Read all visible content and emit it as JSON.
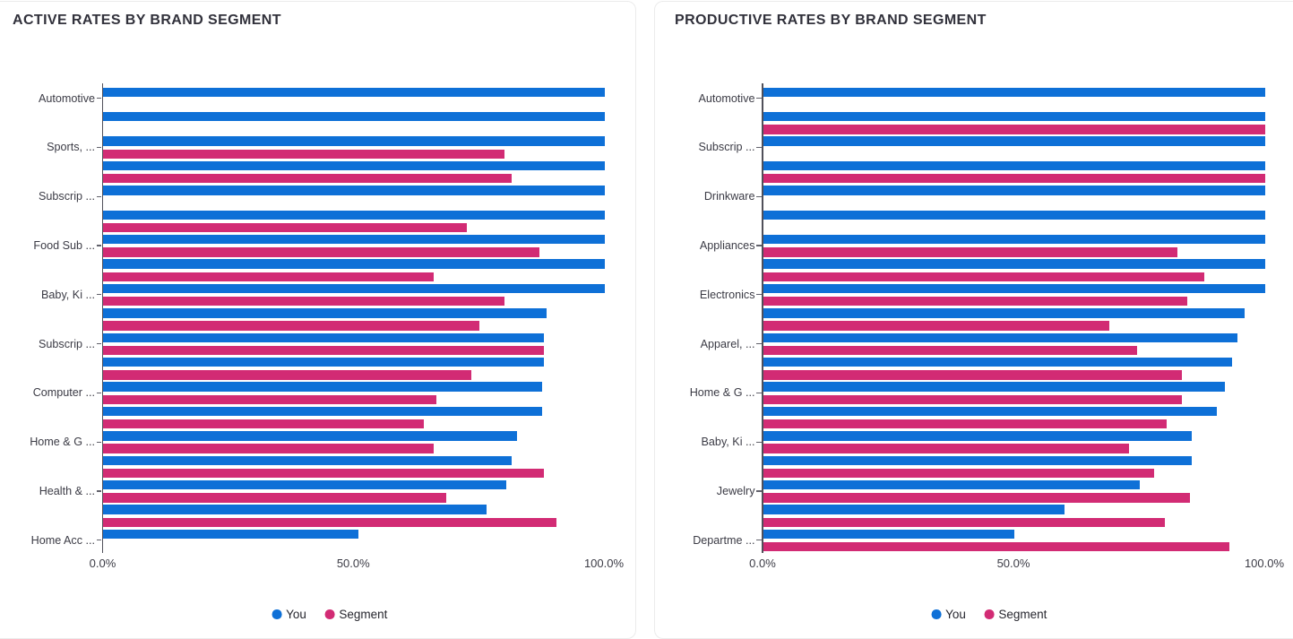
{
  "colors": {
    "you": "#0E70D7",
    "segment": "#D22B74",
    "title_text": "#31313B",
    "axis_text": "#3B3B45",
    "axis_line": "#50505A",
    "card_border": "#EBEBEB"
  },
  "charts": [
    {
      "title": "ACTIVE RATES BY BRAND SEGMENT",
      "legend": [
        {
          "label": "You",
          "color": "#0E70D7"
        },
        {
          "label": "Segment",
          "color": "#D22B74"
        }
      ],
      "chart_data": {
        "type": "bar",
        "orientation": "horizontal",
        "title": "ACTIVE RATES BY BRAND SEGMENT",
        "xlabel": "",
        "ylabel": "",
        "xlim": [
          0,
          100
        ],
        "x_tick_labels": [
          "0.0%",
          "50.0%",
          "100.0%"
        ],
        "grid": false,
        "legend_position": "bottom",
        "categories": [
          "Automotive",
          "",
          "Sports, ...",
          "",
          "Subscrip ...",
          "",
          "Food Sub ...",
          "",
          "Baby, Ki ...",
          "",
          "Subscrip ...",
          "",
          "Computer ...",
          "",
          "Home & G ...",
          "",
          "Health & ...",
          "",
          "Home Acc ..."
        ],
        "series": [
          {
            "name": "You",
            "values": [
              100,
              100,
              100,
              100,
              100,
              100,
              100,
              100,
              100,
              88.5,
              88,
              88,
              87.5,
              87.5,
              82.5,
              81.5,
              80.5,
              76.5,
              51
            ]
          },
          {
            "name": "Segment",
            "values": [
              0,
              0,
              80,
              81.5,
              0,
              72.5,
              87,
              66,
              80,
              75,
              88,
              73.5,
              66.5,
              64,
              66,
              88,
              68.5,
              90.5,
              0
            ]
          }
        ]
      }
    },
    {
      "title": "PRODUCTIVE RATES BY BRAND SEGMENT",
      "legend": [
        {
          "label": "You",
          "color": "#0E70D7"
        },
        {
          "label": "Segment",
          "color": "#D22B74"
        }
      ],
      "chart_data": {
        "type": "bar",
        "orientation": "horizontal",
        "title": "PRODUCTIVE RATES BY BRAND SEGMENT",
        "xlabel": "",
        "ylabel": "",
        "xlim": [
          0,
          100
        ],
        "x_tick_labels": [
          "0.0%",
          "50.0%",
          "100.0%"
        ],
        "grid": false,
        "legend_position": "bottom",
        "categories": [
          "Automotive",
          "",
          "Subscrip ...",
          "",
          "Drinkware",
          "",
          "Appliances",
          "",
          "Electronics",
          "",
          "Apparel, ...",
          "",
          "Home & G ...",
          "",
          "Baby, Ki ...",
          "",
          "Jewelry",
          "",
          "Departme ..."
        ],
        "series": [
          {
            "name": "You",
            "values": [
              100,
              100,
              100,
              100,
              100,
              100,
              100,
              100,
              100,
              96,
              94.5,
              93.5,
              92,
              90.5,
              85.5,
              85.5,
              75,
              60,
              50
            ]
          },
          {
            "name": "Segment",
            "values": [
              0,
              100,
              0,
              100,
              0,
              0,
              82.5,
              88,
              84.5,
              69,
              74.5,
              83.5,
              83.5,
              80.5,
              73,
              78,
              85,
              80,
              93
            ]
          }
        ]
      }
    }
  ]
}
